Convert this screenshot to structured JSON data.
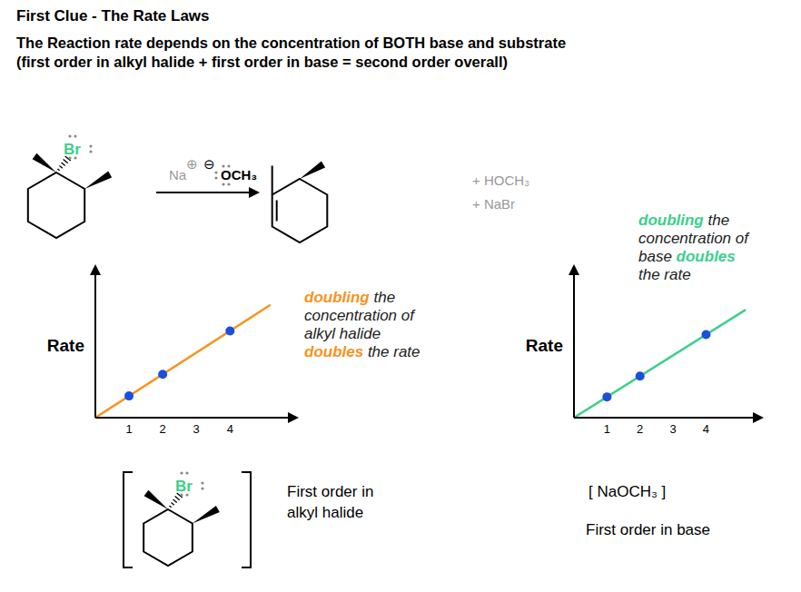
{
  "title": "First Clue - The Rate Laws",
  "subtitle": [
    "The Reaction rate depends on the concentration of BOTH base and substrate",
    "(first order in alkyl halide + first order in base = second order overall)"
  ],
  "reaction": {
    "leaving_group": "Br",
    "counterion": "Na",
    "charges": [
      "⊕",
      "⊖"
    ],
    "base": "OCH₃",
    "byproducts": [
      "+ HOCH₃",
      "+ NaBr"
    ]
  },
  "chart_data": [
    {
      "type": "line",
      "ylabel": "Rate",
      "caption": [
        "First order in",
        "alkyl halide"
      ],
      "annotation": {
        "lines": [
          "doubling the",
          "concentration of",
          "alkyl halide",
          "doubles the rate"
        ],
        "highlight": [
          "doubling",
          "doubles"
        ]
      },
      "xlim": [
        0,
        5.8
      ],
      "xticks": [
        1,
        2,
        3,
        4
      ],
      "ylim": [
        0,
        6.7
      ],
      "tick_labels": "x",
      "series": [
        {
          "type": "line",
          "color": "#f7931e",
          "x": [
            0,
            5.2
          ],
          "values": [
            0,
            5.2
          ]
        },
        {
          "type": "scatter",
          "color": "#1c4fdc",
          "marker": "circle",
          "x": [
            1,
            2,
            4
          ],
          "values": [
            1,
            2,
            4
          ]
        }
      ]
    },
    {
      "type": "line",
      "ylabel": "Rate",
      "xlabel": "[ NaOCH₃ ]",
      "caption": [
        "First order in base"
      ],
      "annotation": {
        "lines": [
          "doubling the",
          "concentration of",
          "base doubles",
          "the rate"
        ],
        "highlight": [
          "doubling",
          "doubles"
        ]
      },
      "xlim": [
        0,
        5.5
      ],
      "xticks": [
        1,
        2,
        3,
        4
      ],
      "ylim": [
        0,
        7
      ],
      "tick_labels": "x",
      "series": [
        {
          "type": "line",
          "color": "#3ccf8b",
          "x": [
            0,
            5.2
          ],
          "values": [
            0,
            5.2
          ]
        },
        {
          "type": "scatter",
          "color": "#1c4fdc",
          "marker": "circle",
          "x": [
            1,
            2,
            4
          ],
          "values": [
            1,
            2,
            4
          ]
        }
      ]
    }
  ]
}
